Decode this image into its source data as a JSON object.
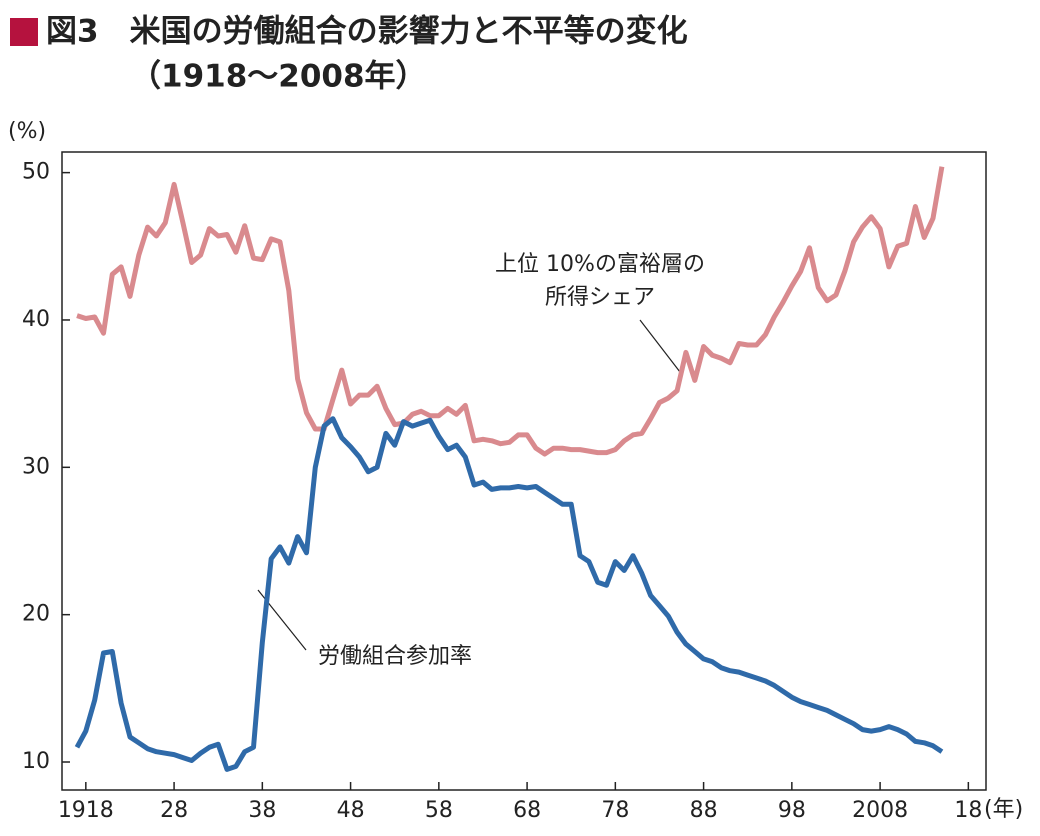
{
  "chart_data": {
    "type": "line",
    "title": "図3　米国の労働組合の影響力と不平等の変化",
    "subtitle": "（1918〜2008年）",
    "y_label": "(%)",
    "x_label": "(年)",
    "annotations": [
      {
        "lines": [
          "上位 10%の富裕層の",
          "所得シェア"
        ],
        "series": 0
      },
      {
        "lines": [
          "労働組合参加率"
        ],
        "series": 1
      }
    ],
    "x": [
      1917,
      1918,
      1919,
      1920,
      1921,
      1922,
      1923,
      1924,
      1925,
      1926,
      1927,
      1928,
      1929,
      1930,
      1931,
      1932,
      1933,
      1934,
      1935,
      1936,
      1937,
      1938,
      1939,
      1940,
      1941,
      1942,
      1943,
      1944,
      1945,
      1946,
      1947,
      1948,
      1949,
      1950,
      1951,
      1952,
      1953,
      1954,
      1955,
      1956,
      1957,
      1958,
      1959,
      1960,
      1961,
      1962,
      1963,
      1964,
      1965,
      1966,
      1967,
      1968,
      1969,
      1970,
      1971,
      1972,
      1973,
      1974,
      1975,
      1976,
      1977,
      1978,
      1979,
      1980,
      1981,
      1982,
      1983,
      1984,
      1985,
      1986,
      1987,
      1988,
      1989,
      1990,
      1991,
      1992,
      1993,
      1994,
      1995,
      1996,
      1997,
      1998,
      1999,
      2000,
      2001,
      2002,
      2003,
      2004,
      2005,
      2006,
      2007,
      2008,
      2009,
      2010,
      2011,
      2012,
      2013,
      2014,
      2015
    ],
    "series": [
      {
        "color": "#d98a8e",
        "values": [
          40.3,
          40.1,
          40.2,
          39.1,
          43.1,
          43.6,
          41.6,
          44.4,
          46.3,
          45.7,
          46.6,
          49.2,
          46.6,
          43.9,
          44.4,
          46.2,
          45.7,
          45.8,
          44.6,
          46.4,
          44.2,
          44.1,
          45.5,
          45.3,
          42.0,
          36.0,
          33.7,
          32.6,
          32.6,
          34.6,
          36.6,
          34.3,
          34.9,
          34.9,
          35.5,
          34.0,
          32.9,
          33.0,
          33.6,
          33.8,
          33.5,
          33.5,
          34.0,
          33.6,
          34.2,
          31.8,
          31.9,
          31.8,
          31.6,
          31.7,
          32.2,
          32.2,
          31.3,
          30.9,
          31.3,
          31.3,
          31.2,
          31.2,
          31.1,
          31.0,
          31.0,
          31.2,
          31.8,
          32.2,
          32.3,
          33.3,
          34.4,
          34.7,
          35.2,
          37.8,
          35.9,
          38.2,
          37.6,
          37.4,
          37.1,
          38.4,
          38.3,
          38.3,
          39.0,
          40.2,
          41.2,
          42.3,
          43.3,
          44.9,
          42.2,
          41.3,
          41.7,
          43.3,
          45.3,
          46.3,
          47.0,
          46.2,
          43.6,
          45.0,
          45.2,
          47.7,
          45.6,
          46.9,
          50.4
        ]
      },
      {
        "color": "#2f6aa9",
        "values": [
          11.0,
          12.1,
          14.2,
          17.4,
          17.5,
          14.0,
          11.7,
          11.3,
          10.9,
          10.7,
          10.6,
          10.5,
          10.3,
          10.1,
          10.6,
          11.0,
          11.2,
          9.5,
          9.7,
          10.7,
          11.0,
          18.1,
          23.8,
          24.6,
          23.5,
          25.3,
          24.2,
          30.0,
          32.8,
          33.3,
          32.0,
          31.4,
          30.7,
          29.7,
          30.0,
          32.3,
          31.5,
          33.1,
          32.8,
          33.0,
          33.2,
          32.1,
          31.2,
          31.5,
          30.7,
          28.8,
          29.0,
          28.5,
          28.6,
          28.6,
          28.7,
          28.6,
          28.7,
          28.3,
          27.9,
          27.5,
          27.5,
          24.0,
          23.6,
          22.2,
          22.0,
          23.6,
          23.0,
          24.0,
          22.8,
          21.3,
          20.6,
          19.9,
          18.8,
          18.0,
          17.5,
          17.0,
          16.8,
          16.4,
          16.2,
          16.1,
          15.9,
          15.7,
          15.5,
          15.2,
          14.8,
          14.4,
          14.1,
          13.9,
          13.7,
          13.5,
          13.2,
          12.9,
          12.6,
          12.2,
          12.1,
          12.2,
          12.4,
          12.2,
          11.9,
          11.4,
          11.3,
          11.1,
          10.7
        ]
      }
    ],
    "xlim": [
      1915.3,
      2020
    ],
    "ylim": [
      8.1,
      51.4
    ],
    "xticks": [
      1918,
      {
        "value": 1928,
        "label": "28"
      },
      {
        "value": 1938,
        "label": "38"
      },
      {
        "value": 1948,
        "label": "48"
      },
      {
        "value": 1958,
        "label": "58"
      },
      {
        "value": 1968,
        "label": "68"
      },
      {
        "value": 1978,
        "label": "78"
      },
      {
        "value": 1988,
        "label": "88"
      },
      {
        "value": 1998,
        "label": "98"
      },
      2008,
      {
        "value": 2018,
        "label": "18"
      }
    ],
    "yticks": [
      10,
      20,
      30,
      40,
      50
    ],
    "grid": false
  }
}
